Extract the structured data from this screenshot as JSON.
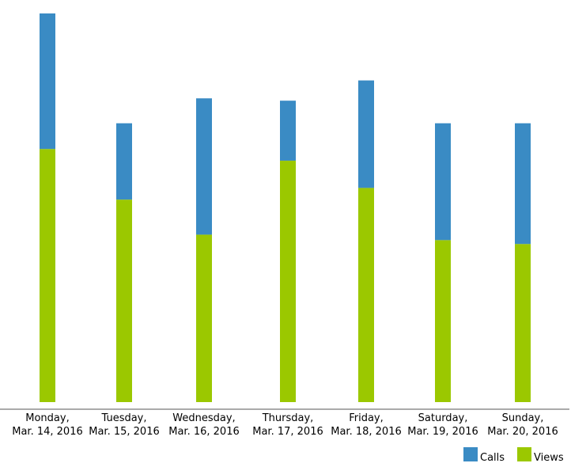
{
  "chart_data": {
    "type": "bar",
    "stacked": true,
    "title": "",
    "xlabel": "",
    "ylabel": "",
    "categories": [
      [
        "Monday,",
        "Mar. 14, 2016"
      ],
      [
        "Tuesday,",
        "Mar. 15, 2016"
      ],
      [
        "Wednesday,",
        "Mar. 16, 2016"
      ],
      [
        "Thursday,",
        "Mar. 17, 2016"
      ],
      [
        "Friday,",
        "Mar. 18, 2016"
      ],
      [
        "Saturday,",
        "Mar. 19, 2016"
      ],
      [
        "Sunday,",
        "Mar. 20, 2016"
      ]
    ],
    "series": [
      {
        "name": "Views",
        "color": "#9bc800",
        "values": [
          65,
          52,
          43,
          62,
          55,
          41.6,
          40.6
        ]
      },
      {
        "name": "Calls",
        "color": "#3a8bc4",
        "values": [
          34.8,
          19.6,
          35,
          15.4,
          27.6,
          30,
          31
        ]
      }
    ],
    "ylim": [
      0,
      100
    ],
    "grid": false,
    "y_axis_shown": false,
    "legend_position": "bottom-right"
  }
}
